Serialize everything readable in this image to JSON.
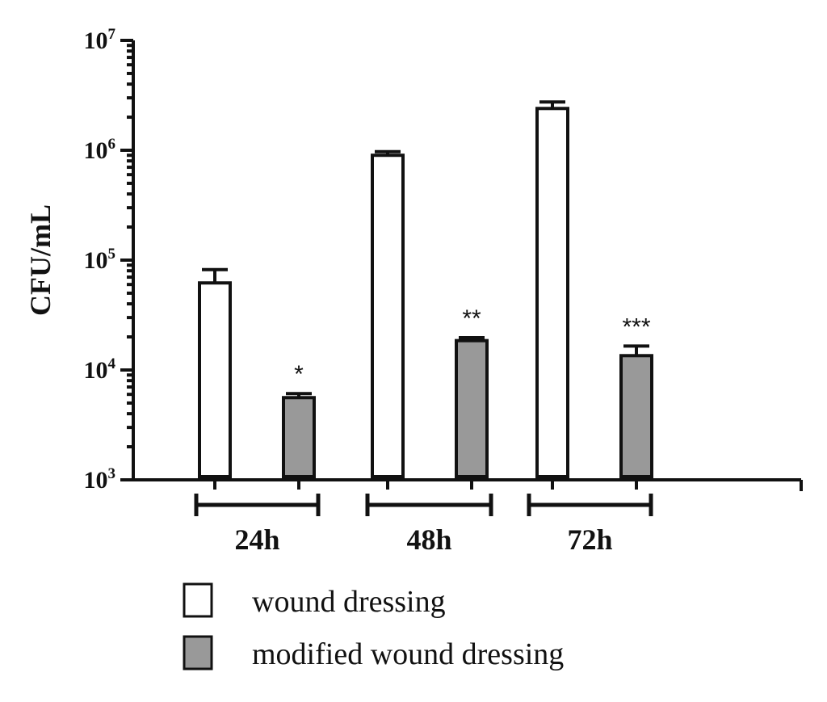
{
  "chart_data": {
    "type": "bar",
    "ylabel": "CFU/mL",
    "yscale": "log",
    "ylim": [
      1000,
      10000000
    ],
    "yticks": [
      {
        "value": 1000,
        "base": "10",
        "exp": "3"
      },
      {
        "value": 10000,
        "base": "10",
        "exp": "4"
      },
      {
        "value": 100000,
        "base": "10",
        "exp": "5"
      },
      {
        "value": 1000000,
        "base": "10",
        "exp": "6"
      },
      {
        "value": 10000000,
        "base": "10",
        "exp": "7"
      }
    ],
    "categories": [
      "24h",
      "48h",
      "72h"
    ],
    "series": [
      {
        "name": "wound dressing",
        "color": "#ffffff",
        "values": [
          62000,
          900000,
          2400000
        ],
        "errors": [
          20000,
          70000,
          350000
        ],
        "annotations": [
          "",
          "",
          ""
        ]
      },
      {
        "name": "modified wound dressing",
        "color": "#999999",
        "values": [
          5600,
          18500,
          13500
        ],
        "errors": [
          500,
          1200,
          3000
        ],
        "annotations": [
          "*",
          "**",
          "***"
        ]
      }
    ],
    "grid": false,
    "legend_position": "bottom"
  }
}
